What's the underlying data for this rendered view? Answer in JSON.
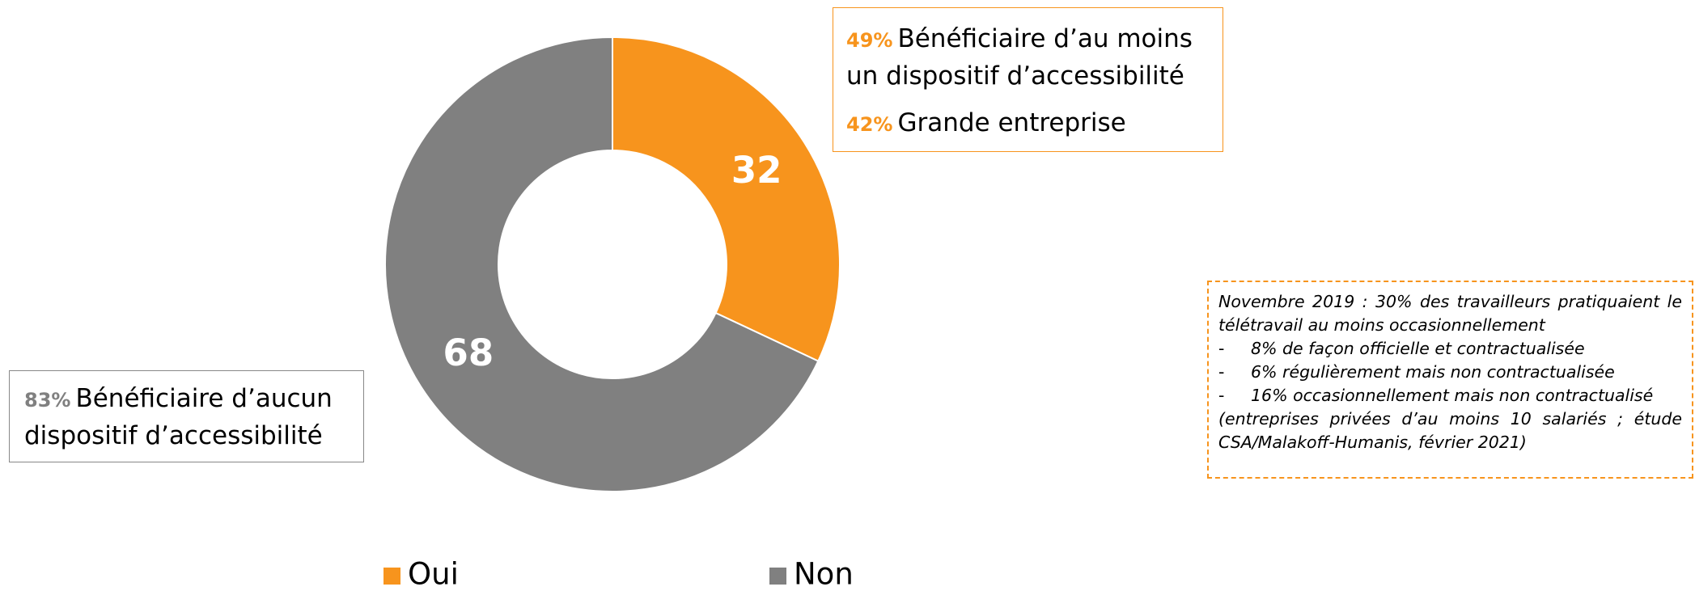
{
  "chart_data": {
    "type": "pie",
    "donut": true,
    "categories": [
      "Oui",
      "Non"
    ],
    "values": [
      32,
      68
    ],
    "colors": [
      "#f7941d",
      "#808080"
    ],
    "legend": "bottom",
    "annotations": {
      "oui": [
        {
          "pct": "49%",
          "text": "Bénéficiaire d’au moins un dispositif d’accessibilité"
        },
        {
          "pct": "42%",
          "text": "Grande entreprise"
        }
      ],
      "non": [
        {
          "pct": "83%",
          "text": "Bénéficiaire d’aucun dispositif d’accessibilité"
        }
      ]
    },
    "note": {
      "title": "Novembre 2019 : 30% des travailleurs pratiquaient le télétravail au moins occasionnellement",
      "items": [
        "8% de façon officielle et contractualisée",
        "6% régulièrement mais non contractualisée",
        "16% occasionnellement mais non contractualisé"
      ],
      "source": "(entreprises privées d’au moins 10 salariés ; étude CSA/Malakoff-Humanis, février 2021)"
    }
  }
}
